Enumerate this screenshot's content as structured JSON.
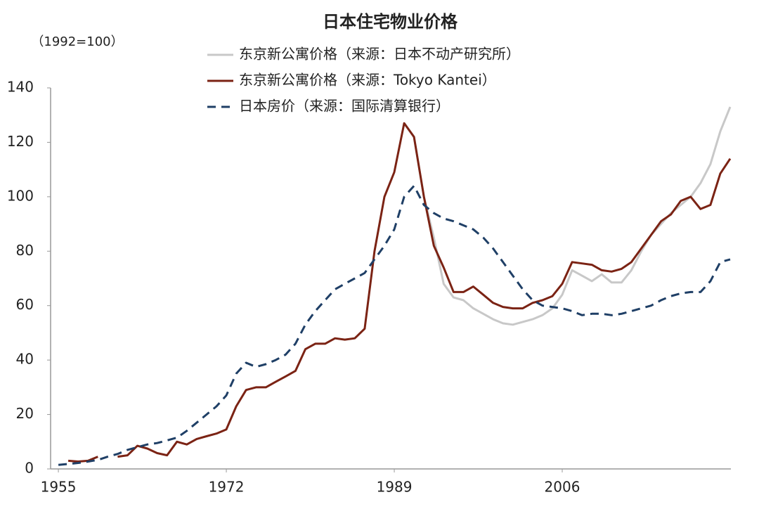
{
  "chart_data": {
    "type": "line",
    "title": "日本住宅物业价格",
    "y_label": "（1992=100）",
    "x": [
      1955,
      1956,
      1957,
      1958,
      1959,
      1960,
      1961,
      1962,
      1963,
      1964,
      1965,
      1966,
      1967,
      1968,
      1969,
      1970,
      1971,
      1972,
      1973,
      1974,
      1975,
      1976,
      1977,
      1978,
      1979,
      1980,
      1981,
      1982,
      1983,
      1984,
      1985,
      1986,
      1987,
      1988,
      1989,
      1990,
      1991,
      1992,
      1993,
      1994,
      1995,
      1996,
      1997,
      1998,
      1999,
      2000,
      2001,
      2002,
      2003,
      2004,
      2005,
      2006,
      2007,
      2008,
      2009,
      2010,
      2011,
      2012,
      2013,
      2014,
      2015,
      2016,
      2017,
      2018,
      2019,
      2020,
      2021,
      2022,
      2023
    ],
    "series": [
      {
        "name": "东京新公寓价格（来源：日本不动产研究所）",
        "color": "#c8c8c8",
        "linestyle": "solid",
        "values": [
          null,
          null,
          null,
          null,
          null,
          null,
          null,
          null,
          null,
          null,
          null,
          null,
          null,
          null,
          null,
          null,
          null,
          null,
          null,
          null,
          null,
          null,
          null,
          null,
          null,
          null,
          null,
          null,
          null,
          null,
          null,
          null,
          null,
          null,
          null,
          127,
          122,
          100,
          85,
          68,
          63,
          62,
          59,
          57,
          55,
          53.5,
          53,
          54,
          55,
          56.5,
          59,
          64,
          73,
          71,
          69,
          71.5,
          68.5,
          68.5,
          73,
          80,
          86,
          90,
          94,
          97,
          100,
          105,
          112,
          124,
          133
        ]
      },
      {
        "name": "东京新公寓价格（来源：Tokyo Kantei）",
        "color": "#7b2314",
        "linestyle": "solid",
        "values": [
          null,
          3,
          2.7,
          3,
          4.5,
          null,
          4.5,
          5,
          8.5,
          7.5,
          5.8,
          5,
          10,
          9,
          11,
          12,
          13,
          14.5,
          23,
          29,
          30,
          30,
          32,
          34,
          36,
          44,
          46,
          46,
          48,
          47.5,
          48,
          51.5,
          80,
          100,
          109,
          127,
          122,
          100,
          82,
          74,
          65,
          65,
          67,
          64,
          61,
          59.5,
          59,
          59,
          61,
          62,
          63.5,
          68,
          76,
          75.5,
          75,
          73,
          72.5,
          73.5,
          76,
          81,
          86,
          91,
          93.5,
          98.5,
          100,
          95.5,
          97,
          108.5,
          114
        ]
      },
      {
        "name": "日本房价（来源：国际清算银行）",
        "color": "#1f3f66",
        "linestyle": "dashed",
        "values": [
          1.5,
          1.8,
          2.2,
          2.7,
          3.3,
          4.5,
          5.5,
          7,
          8,
          9,
          9.5,
          10.5,
          11.5,
          14,
          17,
          20,
          23,
          27,
          35,
          39,
          37.5,
          38.5,
          40,
          42,
          46,
          53,
          58,
          62,
          66,
          68,
          70,
          72,
          77,
          82,
          88,
          100,
          104,
          97,
          94,
          92,
          91,
          89.5,
          88,
          85,
          81,
          76,
          71,
          66,
          62,
          60,
          59.5,
          59,
          58,
          56.5,
          57,
          57,
          56.5,
          57,
          58,
          59,
          60,
          62,
          63.5,
          64.5,
          65,
          65,
          69,
          76,
          77
        ]
      }
    ],
    "xlim": [
      1954,
      2023
    ],
    "xticks": [
      1955,
      1972,
      1989,
      2006
    ],
    "ylim": [
      0,
      140
    ],
    "yticks": [
      0,
      20,
      40,
      60,
      80,
      100,
      120,
      140
    ],
    "grid": false
  }
}
